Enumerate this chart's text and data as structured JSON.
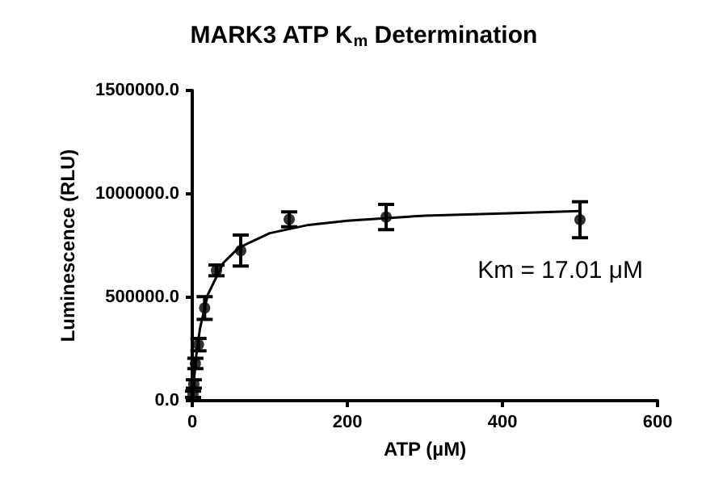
{
  "chart_data": {
    "type": "scatter",
    "title": "MARK3 ATP K$_{m}$ Determination",
    "xlabel": "ATP (µM)",
    "ylabel": "Luminescence (RLU)",
    "annotations": [
      "Km = 17.01 μM"
    ],
    "series": [
      {
        "color": "#000000",
        "marker": "circle",
        "x": [
          1,
          2,
          4,
          8,
          16,
          31.25,
          62.5,
          125,
          250,
          500
        ],
        "values": [
          31000,
          81000,
          180000,
          271000,
          448000,
          630000,
          726000,
          877000,
          888000,
          875000
        ],
        "errors": [
          15000,
          20000,
          25000,
          30000,
          55000,
          26000,
          75000,
          36000,
          61000,
          87000
        ]
      },
      {
        "type": "line",
        "marker": "none",
        "color": "#000000",
        "x": [
          0,
          5,
          10,
          20,
          40,
          60,
          100,
          150,
          200,
          300,
          400,
          500
        ],
        "values": [
          0,
          215000,
          350000,
          512000,
          666000,
          740000,
          810000,
          850000,
          870000,
          895000,
          905000,
          917000
        ]
      }
    ],
    "grid": false,
    "xlim": [
      0,
      600
    ],
    "xticks": [
      0,
      200,
      400,
      600
    ],
    "ylim": [
      0,
      1500000
    ],
    "yticks": [
      {
        "value": 0,
        "label": "0.0"
      },
      {
        "value": 500000,
        "label": "500000.0"
      },
      {
        "value": 1000000,
        "label": "1000000.0"
      },
      {
        "value": 1500000,
        "label": "1500000.0"
      }
    ]
  }
}
